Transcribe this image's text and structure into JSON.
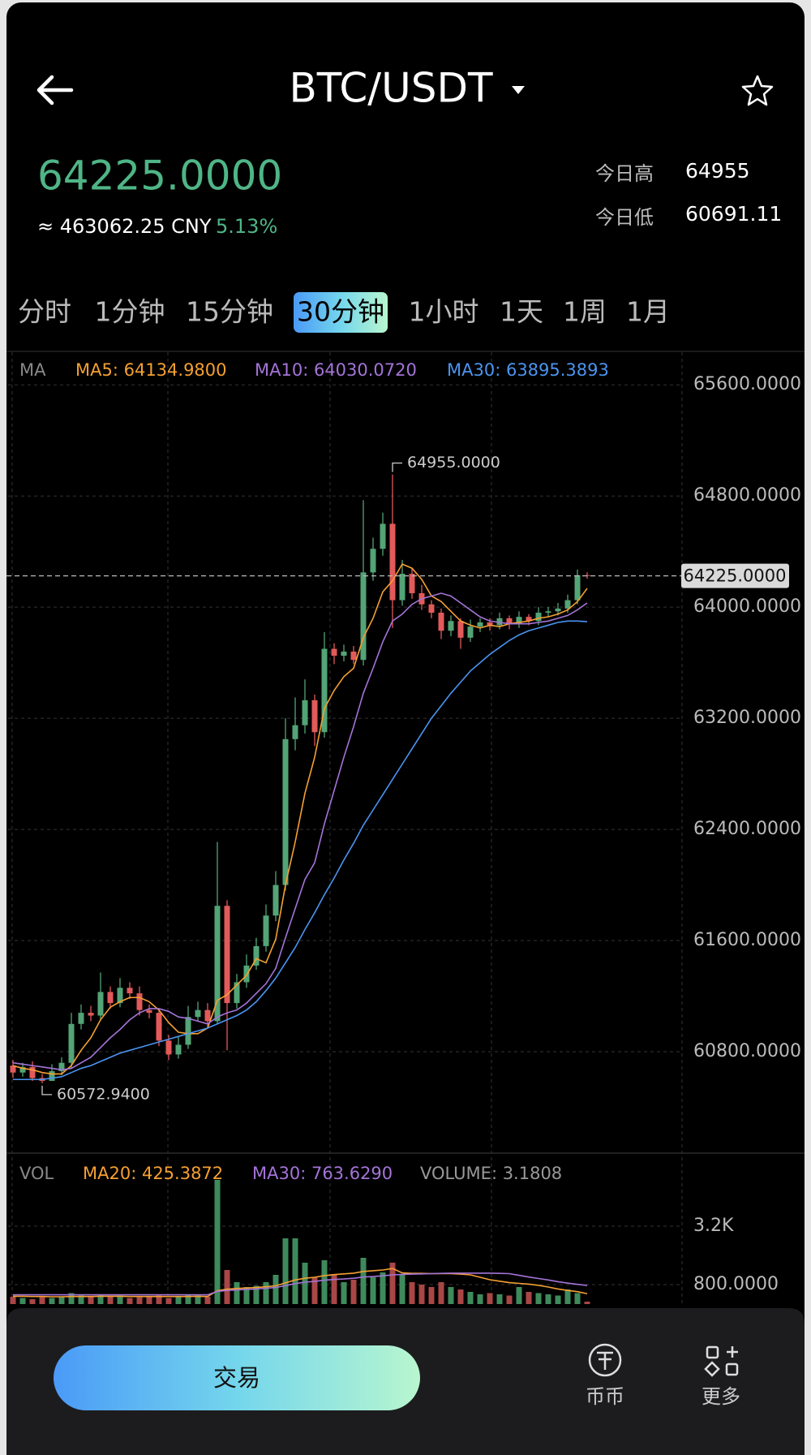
{
  "header": {
    "title": "BTC/USDT"
  },
  "ticker": {
    "price": "64225.0000",
    "cny": "≈ 463062.25 CNY",
    "change": "5.13%",
    "high_label": "今日高",
    "high": "64955",
    "low_label": "今日低",
    "low": "60691.11"
  },
  "tabs": [
    "分时",
    "1分钟",
    "15分钟",
    "30分钟",
    "1小时",
    "1天",
    "1周",
    "1月"
  ],
  "active_tab": "30分钟",
  "bottom_bar": {
    "trade": "交易",
    "spot": "币币",
    "more": "更多"
  },
  "chart_data": [
    {
      "type": "candlestick",
      "legend_label": "MA",
      "up_color": "#53a476",
      "down_color": "#e25a5a",
      "grid": true,
      "open": [
        60700,
        60650,
        60690,
        60610,
        60590,
        60660,
        60720,
        61000,
        61080,
        61060,
        61230,
        61150,
        61260,
        61220,
        61100,
        61080,
        60880,
        60780,
        60850,
        61050,
        61100,
        61020,
        61850,
        61150,
        61300,
        61420,
        61560,
        61780,
        62000,
        63050,
        63150,
        63330,
        63100,
        63700,
        63650,
        63680,
        63620,
        64250,
        64420,
        64600,
        64050,
        64240,
        64100,
        64020,
        63960,
        63830,
        63900,
        63780,
        63860,
        63890,
        63870,
        63920,
        63880,
        63930,
        63900,
        63960,
        63970,
        63990,
        64050,
        64230
      ],
      "high": [
        60740,
        60720,
        60730,
        60640,
        60710,
        60760,
        61080,
        61140,
        61130,
        61370,
        61270,
        61330,
        61300,
        61270,
        61140,
        61110,
        60920,
        60910,
        61130,
        61160,
        61150,
        62310,
        61890,
        61360,
        61500,
        61620,
        61860,
        62100,
        63200,
        63350,
        63480,
        63370,
        63820,
        63740,
        63730,
        63720,
        64770,
        64500,
        64680,
        64955,
        64340,
        64280,
        64160,
        64050,
        63990,
        63940,
        63920,
        63910,
        63920,
        63920,
        63960,
        63940,
        63970,
        63950,
        64000,
        64000,
        64030,
        64090,
        64270,
        64250
      ],
      "low": [
        60610,
        60620,
        60590,
        60572.94,
        60600,
        60630,
        60680,
        60960,
        61020,
        61030,
        61110,
        61120,
        61180,
        61060,
        61040,
        60840,
        60740,
        60750,
        60820,
        61020,
        60980,
        61000,
        60810,
        61110,
        61260,
        61390,
        61520,
        61740,
        61960,
        62970,
        63090,
        63000,
        63060,
        63590,
        63610,
        63590,
        63580,
        64190,
        64370,
        63850,
        64010,
        64060,
        63980,
        63920,
        63770,
        63790,
        63700,
        63750,
        63820,
        63830,
        63840,
        63840,
        63850,
        63870,
        63870,
        63930,
        63940,
        63960,
        64020,
        64205
      ],
      "close": [
        60650,
        60690,
        60610,
        60590,
        60660,
        60720,
        61000,
        61080,
        61060,
        61230,
        61150,
        61260,
        61220,
        61100,
        61080,
        60880,
        60780,
        60850,
        61050,
        61100,
        61020,
        61850,
        61150,
        61300,
        61420,
        61560,
        61780,
        62000,
        63050,
        63150,
        63330,
        63100,
        63700,
        63650,
        63680,
        63620,
        64250,
        64420,
        64600,
        64050,
        64240,
        64100,
        64020,
        63960,
        63830,
        63900,
        63780,
        63860,
        63890,
        63870,
        63920,
        63880,
        63930,
        63900,
        63960,
        63970,
        63990,
        64050,
        64230,
        64225
      ],
      "series": [
        {
          "name": "MA5: 64134.9800",
          "color": "#f5a032",
          "values": [
            60700,
            60680,
            60670,
            60650,
            60640,
            60640,
            60700,
            60810,
            60900,
            61030,
            61120,
            61160,
            61190,
            61190,
            61160,
            61100,
            61010,
            60940,
            60930,
            60930,
            60970,
            61170,
            61210,
            61280,
            61350,
            61470,
            61440,
            61610,
            62000,
            62310,
            62660,
            62920,
            63270,
            63400,
            63500,
            63560,
            63780,
            63920,
            64110,
            64190,
            64310,
            64280,
            64200,
            64080,
            64040,
            63970,
            63900,
            63870,
            63850,
            63870,
            63860,
            63880,
            63890,
            63900,
            63920,
            63930,
            63950,
            63980,
            64040,
            64134.98
          ]
        },
        {
          "name": "MA10: 64030.0720",
          "color": "#a474d8",
          "values": [
            60720,
            60710,
            60700,
            60690,
            60680,
            60670,
            60680,
            60720,
            60760,
            60830,
            60900,
            60960,
            61030,
            61080,
            61110,
            61110,
            61090,
            61050,
            61040,
            61020,
            61000,
            61050,
            61080,
            61100,
            61150,
            61220,
            61290,
            61400,
            61620,
            61830,
            62040,
            62160,
            62440,
            62680,
            62920,
            63140,
            63380,
            63560,
            63750,
            63900,
            63950,
            64020,
            64060,
            64080,
            64100,
            64080,
            64030,
            63980,
            63930,
            63900,
            63890,
            63880,
            63880,
            63880,
            63890,
            63900,
            63920,
            63940,
            63980,
            64030.07
          ]
        },
        {
          "name": "MA30: 63895.3893",
          "color": "#4b94f0",
          "values": [
            60600,
            60600,
            60600,
            60600,
            60610,
            60620,
            60650,
            60680,
            60700,
            60730,
            60760,
            60790,
            60810,
            60830,
            60850,
            60870,
            60890,
            60910,
            60930,
            60950,
            60970,
            61000,
            61030,
            61060,
            61100,
            61160,
            61240,
            61330,
            61440,
            61550,
            61680,
            61800,
            61930,
            62050,
            62180,
            62300,
            62430,
            62540,
            62650,
            62760,
            62870,
            62980,
            63090,
            63200,
            63290,
            63380,
            63460,
            63540,
            63600,
            63660,
            63710,
            63760,
            63800,
            63830,
            63850,
            63870,
            63890,
            63900,
            63900,
            63895.39
          ]
        }
      ],
      "ylim": [
        60070,
        65835
      ],
      "yticks": [
        {
          "value": 60800,
          "label": "60800.0000"
        },
        {
          "value": 61600,
          "label": "61600.0000"
        },
        {
          "value": 62400,
          "label": "62400.0000"
        },
        {
          "value": 63200,
          "label": "63200.0000"
        },
        {
          "value": 64000,
          "label": "64000.0000"
        },
        {
          "value": 64800,
          "label": "64800.0000"
        },
        {
          "value": 65600,
          "label": "65600.0000"
        }
      ],
      "max_marker": {
        "value": 64955,
        "label": "64955.0000"
      },
      "min_marker": {
        "value": 60572.94,
        "label": "60572.9400"
      },
      "last_price": {
        "value": 64225,
        "label": "64225.0000"
      }
    },
    {
      "type": "bar",
      "legend_label": "VOL",
      "up_color": "#3f8a5c",
      "down_color": "#a94646",
      "grid": true,
      "values": [
        300,
        250,
        200,
        280,
        250,
        300,
        450,
        350,
        300,
        400,
        300,
        350,
        250,
        280,
        300,
        350,
        250,
        300,
        400,
        350,
        300,
        5100,
        1400,
        900,
        700,
        750,
        900,
        1200,
        2700,
        2700,
        1700,
        1100,
        1800,
        1200,
        900,
        1000,
        1900,
        1100,
        1300,
        1700,
        1200,
        900,
        800,
        700,
        900,
        700,
        600,
        500,
        400,
        450,
        400,
        350,
        700,
        500,
        450,
        400,
        350,
        600,
        450,
        100
      ],
      "series": [
        {
          "name": "MA20: 425.3872",
          "color": "#f5a032",
          "values": [
            320,
            320,
            310,
            310,
            300,
            300,
            310,
            310,
            310,
            320,
            320,
            320,
            310,
            310,
            310,
            310,
            310,
            310,
            310,
            320,
            310,
            550,
            610,
            640,
            660,
            680,
            710,
            750,
            870,
            990,
            1060,
            1100,
            1170,
            1210,
            1240,
            1270,
            1340,
            1370,
            1400,
            1460,
            1280,
            1260,
            1260,
            1250,
            1250,
            1250,
            1230,
            1200,
            1100,
            1000,
            940,
            880,
            850,
            820,
            770,
            700,
            620,
            560,
            510,
            425.39
          ]
        },
        {
          "name": "MA30: 763.6290",
          "color": "#a474d8",
          "values": [
            380,
            380,
            380,
            380,
            380,
            380,
            380,
            380,
            380,
            380,
            380,
            380,
            380,
            380,
            380,
            380,
            380,
            380,
            380,
            380,
            380,
            520,
            560,
            580,
            600,
            620,
            650,
            680,
            760,
            840,
            900,
            930,
            980,
            1010,
            1030,
            1060,
            1110,
            1130,
            1160,
            1200,
            1220,
            1230,
            1240,
            1250,
            1260,
            1270,
            1270,
            1270,
            1270,
            1270,
            1260,
            1250,
            1180,
            1110,
            1050,
            990,
            920,
            860,
            810,
            763.63
          ]
        }
      ],
      "volume_label": "VOLUME: 3.1808",
      "ylim": [
        0,
        6200
      ],
      "yticks": [
        {
          "value": 800,
          "label": "800.0000"
        },
        {
          "value": 3200,
          "label": "3.2K"
        }
      ]
    }
  ]
}
